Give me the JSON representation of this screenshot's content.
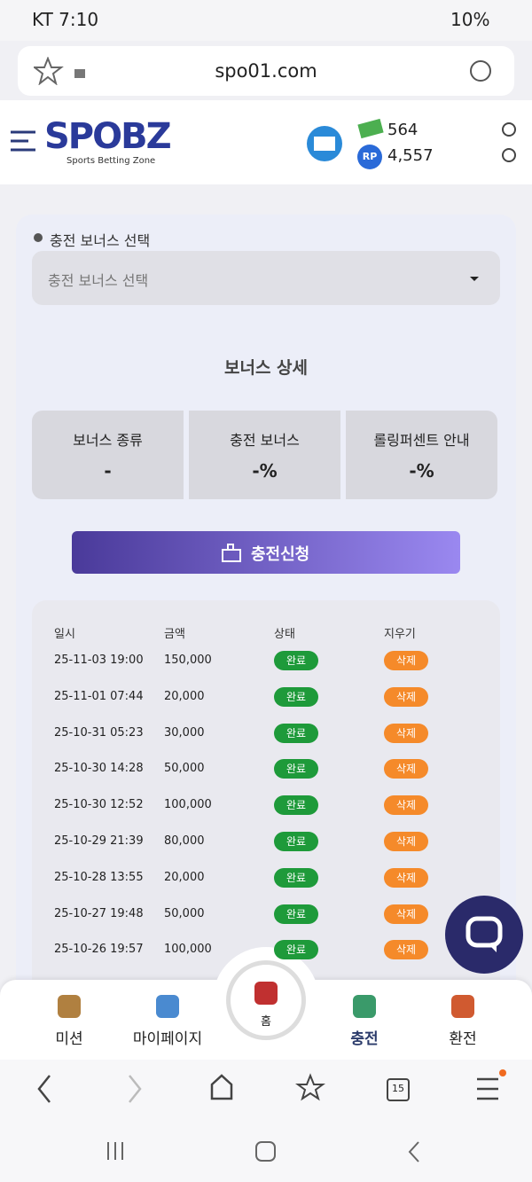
{
  "status_bar": {
    "left": "KT 7:10",
    "battery": "10%"
  },
  "browser": {
    "url": "spo01.com"
  },
  "header": {
    "logo": "SPOBZ",
    "logo_sub": "Sports Betting Zone",
    "money": "564",
    "rp_badge": "RP",
    "points": "4,557"
  },
  "bonus": {
    "label": "충전 보너스 선택",
    "select_placeholder": "충전 보너스 선택",
    "detail_title": "보너스 상세",
    "cells": [
      {
        "label": "보너스 종류",
        "value": "-"
      },
      {
        "label": "충전 보너스",
        "value": "-%"
      },
      {
        "label": "롤링퍼센트 안내",
        "value": "-%"
      }
    ],
    "button": "충전신청"
  },
  "history": {
    "headers": [
      "일시",
      "금액",
      "상태",
      "지우기"
    ],
    "rows": [
      [
        "25-11-03 19:00",
        "150,000",
        "완료",
        "삭제"
      ],
      [
        "25-11-01 07:44",
        "20,000",
        "완료",
        "삭제"
      ],
      [
        "25-10-31 05:23",
        "30,000",
        "완료",
        "삭제"
      ],
      [
        "25-10-30 14:28",
        "50,000",
        "완료",
        "삭제"
      ],
      [
        "25-10-30 12:52",
        "100,000",
        "완료",
        "삭제"
      ],
      [
        "25-10-29 21:39",
        "80,000",
        "완료",
        "삭제"
      ],
      [
        "25-10-28 13:55",
        "20,000",
        "완료",
        "삭제"
      ],
      [
        "25-10-27 19:48",
        "50,000",
        "완료",
        "삭제"
      ],
      [
        "25-10-26 19:57",
        "100,000",
        "완료",
        "삭제"
      ]
    ]
  },
  "bottom_nav": {
    "items": [
      "미션",
      "마이페이지",
      "홈",
      "충전",
      "환전"
    ]
  },
  "browser_toolbar": {
    "tabs": "15"
  }
}
